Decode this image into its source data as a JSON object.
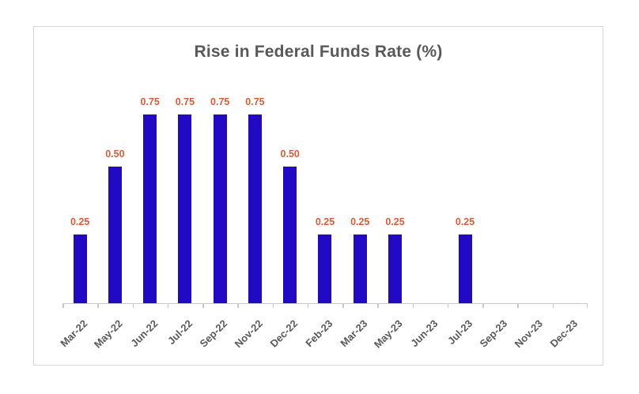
{
  "chart_data": {
    "type": "bar",
    "title": "Rise in Federal Funds Rate (%)",
    "categories": [
      "Mar-22",
      "May-22",
      "Jun-22",
      "Jul-22",
      "Sep-22",
      "Nov-22",
      "Dec-22",
      "Feb-23",
      "Mar-23",
      "May-23",
      "Jun-23",
      "Jul-23",
      "Sep-23",
      "Nov-23",
      "Dec-23"
    ],
    "values": [
      0.25,
      0.5,
      0.75,
      0.75,
      0.75,
      0.75,
      0.5,
      0.25,
      0.25,
      0.25,
      0,
      0.25,
      0,
      0,
      0
    ],
    "labels": [
      "0.25",
      "0.50",
      "0.75",
      "0.75",
      "0.75",
      "0.75",
      "0.50",
      "0.25",
      "0.25",
      "0.25",
      "",
      "0.25",
      "",
      "",
      ""
    ],
    "xlabel": "",
    "ylabel": "",
    "ylim": [
      0,
      0.75
    ],
    "grid": false,
    "legend": "none",
    "colors": {
      "bar": "#2209c4",
      "data_label": "#de5b33",
      "title_text": "#595959",
      "axis_text": "#595959",
      "axis_line": "#c9c9c9",
      "card_border": "#d9d9d9",
      "background": "#ffffff"
    }
  }
}
